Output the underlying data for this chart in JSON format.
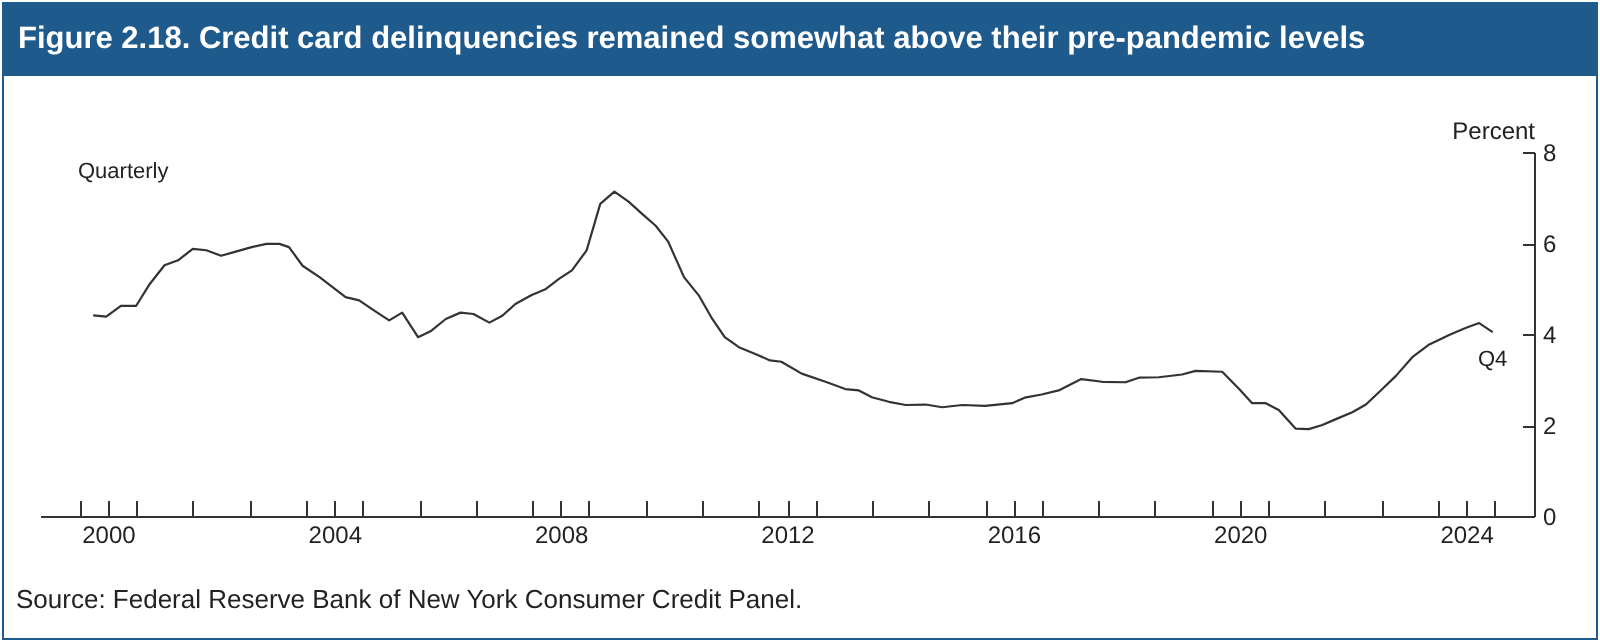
{
  "chart_data": {
    "type": "line",
    "title": "Figure 2.18. Credit card delinquencies remained somewhat above their pre-pandemic levels",
    "ylabel": "Percent",
    "annotations": [
      "Quarterly",
      {
        "text": "Q4",
        "x": 2024.97,
        "y": 4.04
      },
      "Source: Federal Reserve Bank of New York Consumer Credit Panel."
    ],
    "x": [
      2000.24,
      2000.47,
      2000.73,
      2001.0,
      2001.24,
      2001.5,
      2001.74,
      2002.0,
      2002.24,
      2002.5,
      2002.76,
      2003.04,
      2003.3,
      2003.53,
      2003.7,
      2003.94,
      2004.24,
      2004.47,
      2004.7,
      2004.94,
      2005.2,
      2005.47,
      2005.7,
      2005.98,
      2006.2,
      2006.47,
      2006.73,
      2006.96,
      2007.24,
      2007.47,
      2007.7,
      2007.98,
      2008.24,
      2008.47,
      2008.7,
      2008.96,
      2009.2,
      2009.45,
      2009.7,
      2009.94,
      2010.18,
      2010.4,
      2010.68,
      2010.94,
      2011.18,
      2011.4,
      2011.65,
      2011.94,
      2012.2,
      2012.4,
      2012.76,
      2013.18,
      2013.53,
      2013.77,
      2014.0,
      2014.3,
      2014.6,
      2014.95,
      2015.24,
      2015.6,
      2016.0,
      2016.48,
      2016.7,
      2017.0,
      2017.3,
      2017.7,
      2018.07,
      2018.48,
      2018.72,
      2019.07,
      2019.48,
      2019.72,
      2020.19,
      2020.49,
      2020.72,
      2020.96,
      2021.19,
      2021.49,
      2021.72,
      2021.96,
      2022.22,
      2022.49,
      2022.73,
      2023.02,
      2023.26,
      2023.55,
      2023.85,
      2024.2,
      2024.49,
      2024.73,
      2024.97
    ],
    "values": [
      4.41,
      4.38,
      4.62,
      4.62,
      5.1,
      5.51,
      5.62,
      5.87,
      5.84,
      5.72,
      5.81,
      5.91,
      5.98,
      5.98,
      5.91,
      5.5,
      5.25,
      5.03,
      4.81,
      4.74,
      4.52,
      4.3,
      4.47,
      3.93,
      4.06,
      4.33,
      4.47,
      4.44,
      4.25,
      4.4,
      4.66,
      4.85,
      4.99,
      5.21,
      5.4,
      5.84,
      6.86,
      7.13,
      6.91,
      6.64,
      6.38,
      6.03,
      5.25,
      4.85,
      4.33,
      3.93,
      3.71,
      3.56,
      3.42,
      3.39,
      3.13,
      2.95,
      2.79,
      2.76,
      2.61,
      2.51,
      2.44,
      2.45,
      2.39,
      2.44,
      2.42,
      2.48,
      2.6,
      2.67,
      2.76,
      3.01,
      2.95,
      2.94,
      3.04,
      3.05,
      3.11,
      3.19,
      3.17,
      2.79,
      2.48,
      2.48,
      2.33,
      1.92,
      1.91,
      2.0,
      2.14,
      2.28,
      2.45,
      2.79,
      3.08,
      3.49,
      3.77,
      3.98,
      4.13,
      4.24,
      4.04
    ],
    "color": "#333333",
    "xlim": [
      1999.3,
      2025.7
    ],
    "ylim": [
      0,
      8
    ],
    "yticks": [
      0,
      2,
      4,
      6,
      8
    ],
    "grid": false,
    "xticks": [
      {
        "value": 2000,
        "label": null
      },
      {
        "value": 2000.5,
        "label": "2000"
      },
      {
        "value": 2001,
        "label": null
      },
      {
        "value": 2002,
        "label": null
      },
      {
        "value": 2003,
        "label": null
      },
      {
        "value": 2004,
        "label": null
      },
      {
        "value": 2004.5,
        "label": "2004"
      },
      {
        "value": 2005,
        "label": null
      },
      {
        "value": 2006,
        "label": null
      },
      {
        "value": 2007,
        "label": null
      },
      {
        "value": 2008,
        "label": null
      },
      {
        "value": 2008.5,
        "label": "2008"
      },
      {
        "value": 2009,
        "label": null
      },
      {
        "value": 2010,
        "label": null
      },
      {
        "value": 2011,
        "label": null
      },
      {
        "value": 2012,
        "label": null
      },
      {
        "value": 2012.5,
        "label": "2012"
      },
      {
        "value": 2013,
        "label": null
      },
      {
        "value": 2014,
        "label": null
      },
      {
        "value": 2015,
        "label": null
      },
      {
        "value": 2016,
        "label": null
      },
      {
        "value": 2016.5,
        "label": "2016"
      },
      {
        "value": 2017,
        "label": null
      },
      {
        "value": 2018,
        "label": null
      },
      {
        "value": 2019,
        "label": null
      },
      {
        "value": 2020,
        "label": null
      },
      {
        "value": 2020.5,
        "label": "2020"
      },
      {
        "value": 2021,
        "label": null
      },
      {
        "value": 2022,
        "label": null
      },
      {
        "value": 2023,
        "label": null
      },
      {
        "value": 2024,
        "label": null
      },
      {
        "value": 2024.5,
        "label": "2024"
      },
      {
        "value": 2025,
        "label": null
      }
    ]
  }
}
